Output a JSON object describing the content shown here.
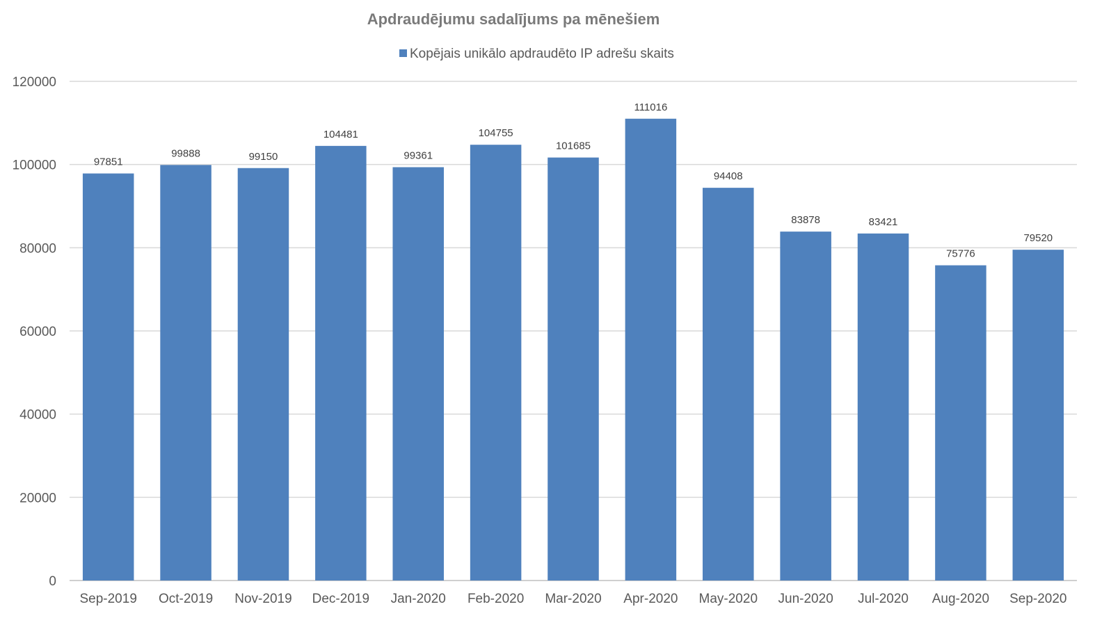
{
  "chart_data": {
    "type": "bar",
    "title": "Apdraudējumu sadalījums pa mēnešiem",
    "xlabel": "",
    "ylabel": "",
    "ylim": [
      0,
      120000
    ],
    "yticks": [
      0,
      20000,
      40000,
      60000,
      80000,
      100000,
      120000
    ],
    "grid": true,
    "legend_position": "top",
    "categories": [
      "Sep-2019",
      "Oct-2019",
      "Nov-2019",
      "Dec-2019",
      "Jan-2020",
      "Feb-2020",
      "Mar-2020",
      "Apr-2020",
      "May-2020",
      "Jun-2020",
      "Jul-2020",
      "Aug-2020",
      "Sep-2020"
    ],
    "series": [
      {
        "name": "Kopējais unikālo apdraudēto IP adrešu skaits",
        "color": "#4f81bd",
        "values": [
          97851,
          99888,
          99150,
          104481,
          99361,
          104755,
          101685,
          111016,
          94408,
          83878,
          83421,
          75776,
          79520
        ]
      }
    ]
  }
}
